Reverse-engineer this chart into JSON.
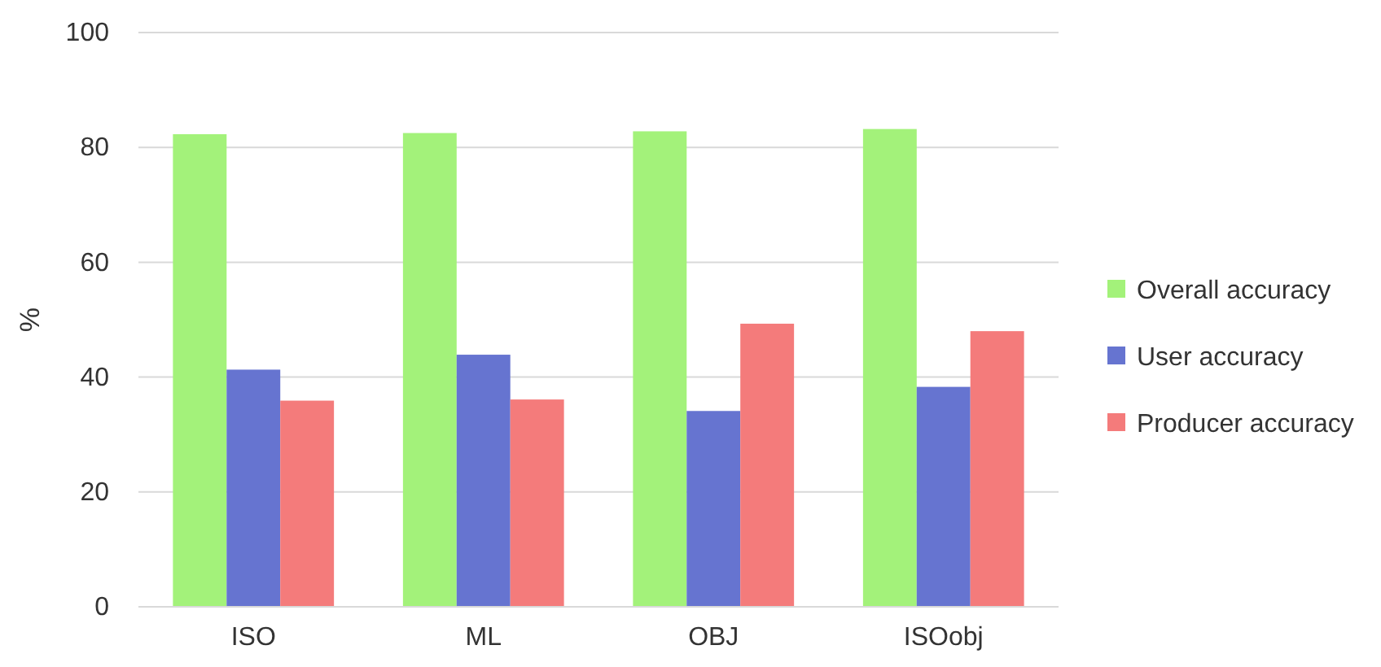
{
  "chart_data": {
    "type": "bar",
    "ylabel": "%",
    "categories": [
      "ISO",
      "ML",
      "OBJ",
      "ISOobj"
    ],
    "series": [
      {
        "name": "Overall accuracy",
        "color": "#a3f27a",
        "values": [
          82.3,
          82.5,
          82.8,
          83.2
        ]
      },
      {
        "name": "User accuracy",
        "color": "#6674d0",
        "values": [
          41.3,
          43.9,
          34.1,
          38.3
        ]
      },
      {
        "name": "Producer accuracy",
        "color": "#f47b7b",
        "values": [
          35.9,
          36.1,
          49.3,
          48.0
        ]
      }
    ],
    "ylim": [
      0,
      100
    ],
    "yticks": [
      0,
      20,
      40,
      60,
      80,
      100
    ],
    "grid": "y",
    "legend": "right"
  }
}
